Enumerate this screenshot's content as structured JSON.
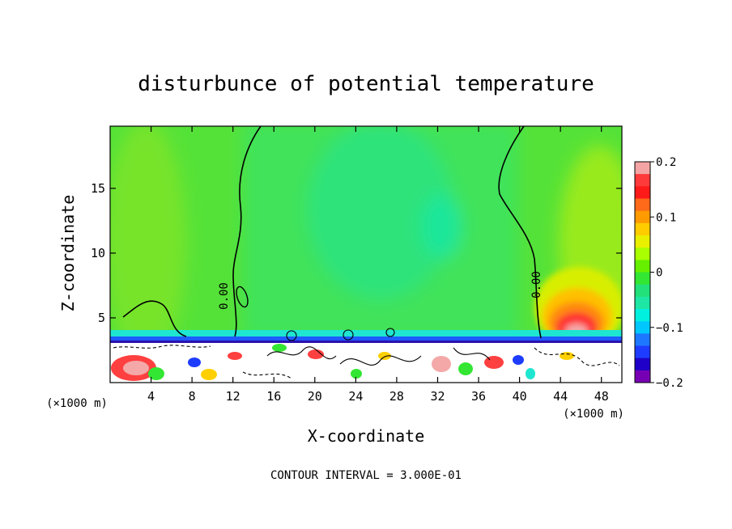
{
  "chart_data": {
    "type": "heatmap",
    "title": "disturbunce of potential temperature",
    "xlabel": "X-coordinate",
    "ylabel": "Z-coordinate",
    "x_unit": "(×1000 m)",
    "xlim": [
      0,
      50
    ],
    "ylim": [
      0,
      19.8
    ],
    "x_ticks": [
      4,
      8,
      12,
      16,
      20,
      24,
      28,
      32,
      36,
      40,
      44,
      48
    ],
    "y_ticks": [
      5,
      10,
      15
    ],
    "colorbar": {
      "min": -0.2,
      "max": 0.2,
      "tick_values": [
        0.2,
        0.1,
        0,
        -0.1,
        -0.2
      ],
      "tick_labels": [
        "0.2",
        "0.1",
        "0",
        "−0.1",
        "−0.2"
      ],
      "colors": [
        "#f4a4a4",
        "#ff3a3a",
        "#ff1a1a",
        "#ff6a1a",
        "#ff9a00",
        "#ffcc00",
        "#e8f000",
        "#aaff00",
        "#66f000",
        "#33e633",
        "#22e07a",
        "#1ee6a5",
        "#00f0e0",
        "#00c8ff",
        "#1e78ff",
        "#1e3cff",
        "#1e00c8",
        "#7800b4"
      ]
    },
    "contour_labels": [
      "0.00",
      "0.00"
    ],
    "footnote": "CONTOUR INTERVAL = 3.000E-01"
  }
}
